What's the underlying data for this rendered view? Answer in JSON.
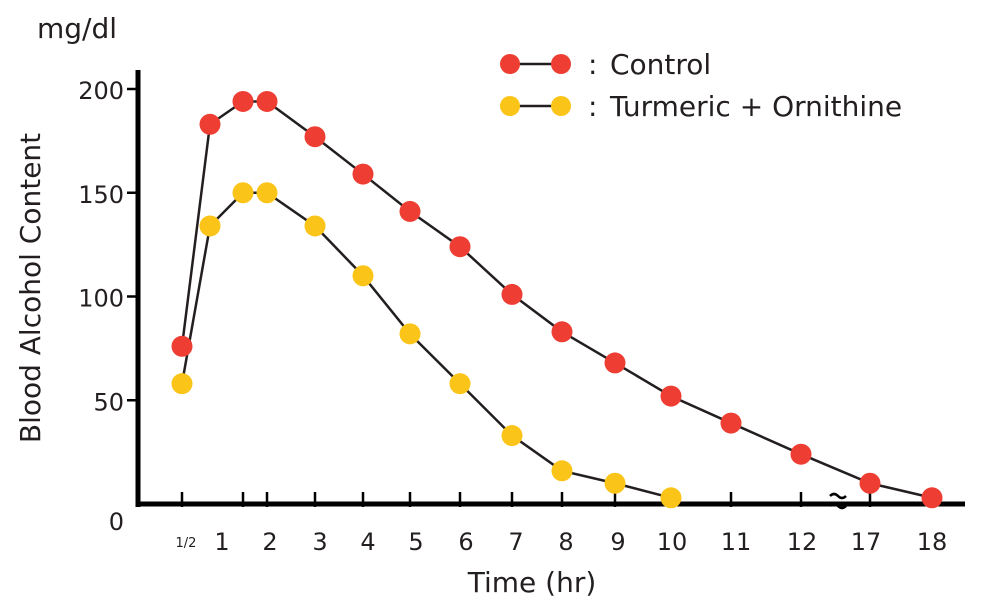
{
  "chart_data": {
    "type": "line",
    "unit_label": "mg/dl",
    "ylabel": "Blood Alcohol Content",
    "xlabel": "Time (hr)",
    "x_ticks": [
      "1/2",
      "1",
      "2",
      "3",
      "4",
      "5",
      "6",
      "7",
      "8",
      "9",
      "10",
      "11",
      "12",
      "17",
      "18"
    ],
    "x_axis_break": "between 12 and 17",
    "y_ticks": [
      "0",
      "50",
      "100",
      "150",
      "200"
    ],
    "ylim": [
      0,
      200
    ],
    "grid": false,
    "legend_position": "top-right",
    "series": [
      {
        "name": "Control",
        "color": "#ee3e33",
        "points": [
          {
            "x": "1/2",
            "y": 76
          },
          {
            "x": "3/4",
            "y": 183
          },
          {
            "x": "1",
            "y": 194
          },
          {
            "x": "2",
            "y": 194
          },
          {
            "x": "3",
            "y": 177
          },
          {
            "x": "4",
            "y": 159
          },
          {
            "x": "5",
            "y": 141
          },
          {
            "x": "6",
            "y": 124
          },
          {
            "x": "7",
            "y": 101
          },
          {
            "x": "8",
            "y": 83
          },
          {
            "x": "9",
            "y": 68
          },
          {
            "x": "10",
            "y": 52
          },
          {
            "x": "11",
            "y": 39
          },
          {
            "x": "12",
            "y": 24
          },
          {
            "x": "17",
            "y": 10
          },
          {
            "x": "18",
            "y": 3
          }
        ]
      },
      {
        "name": "Turmeric + Ornithine",
        "color": "#fbc419",
        "points": [
          {
            "x": "1/2",
            "y": 58
          },
          {
            "x": "3/4",
            "y": 134
          },
          {
            "x": "1",
            "y": 150
          },
          {
            "x": "2",
            "y": 150
          },
          {
            "x": "3",
            "y": 134
          },
          {
            "x": "4",
            "y": 110
          },
          {
            "x": "5",
            "y": 82
          },
          {
            "x": "6",
            "y": 58
          },
          {
            "x": "7",
            "y": 33
          },
          {
            "x": "8",
            "y": 16
          },
          {
            "x": "9",
            "y": 10
          },
          {
            "x": "10",
            "y": 3
          }
        ]
      }
    ]
  }
}
